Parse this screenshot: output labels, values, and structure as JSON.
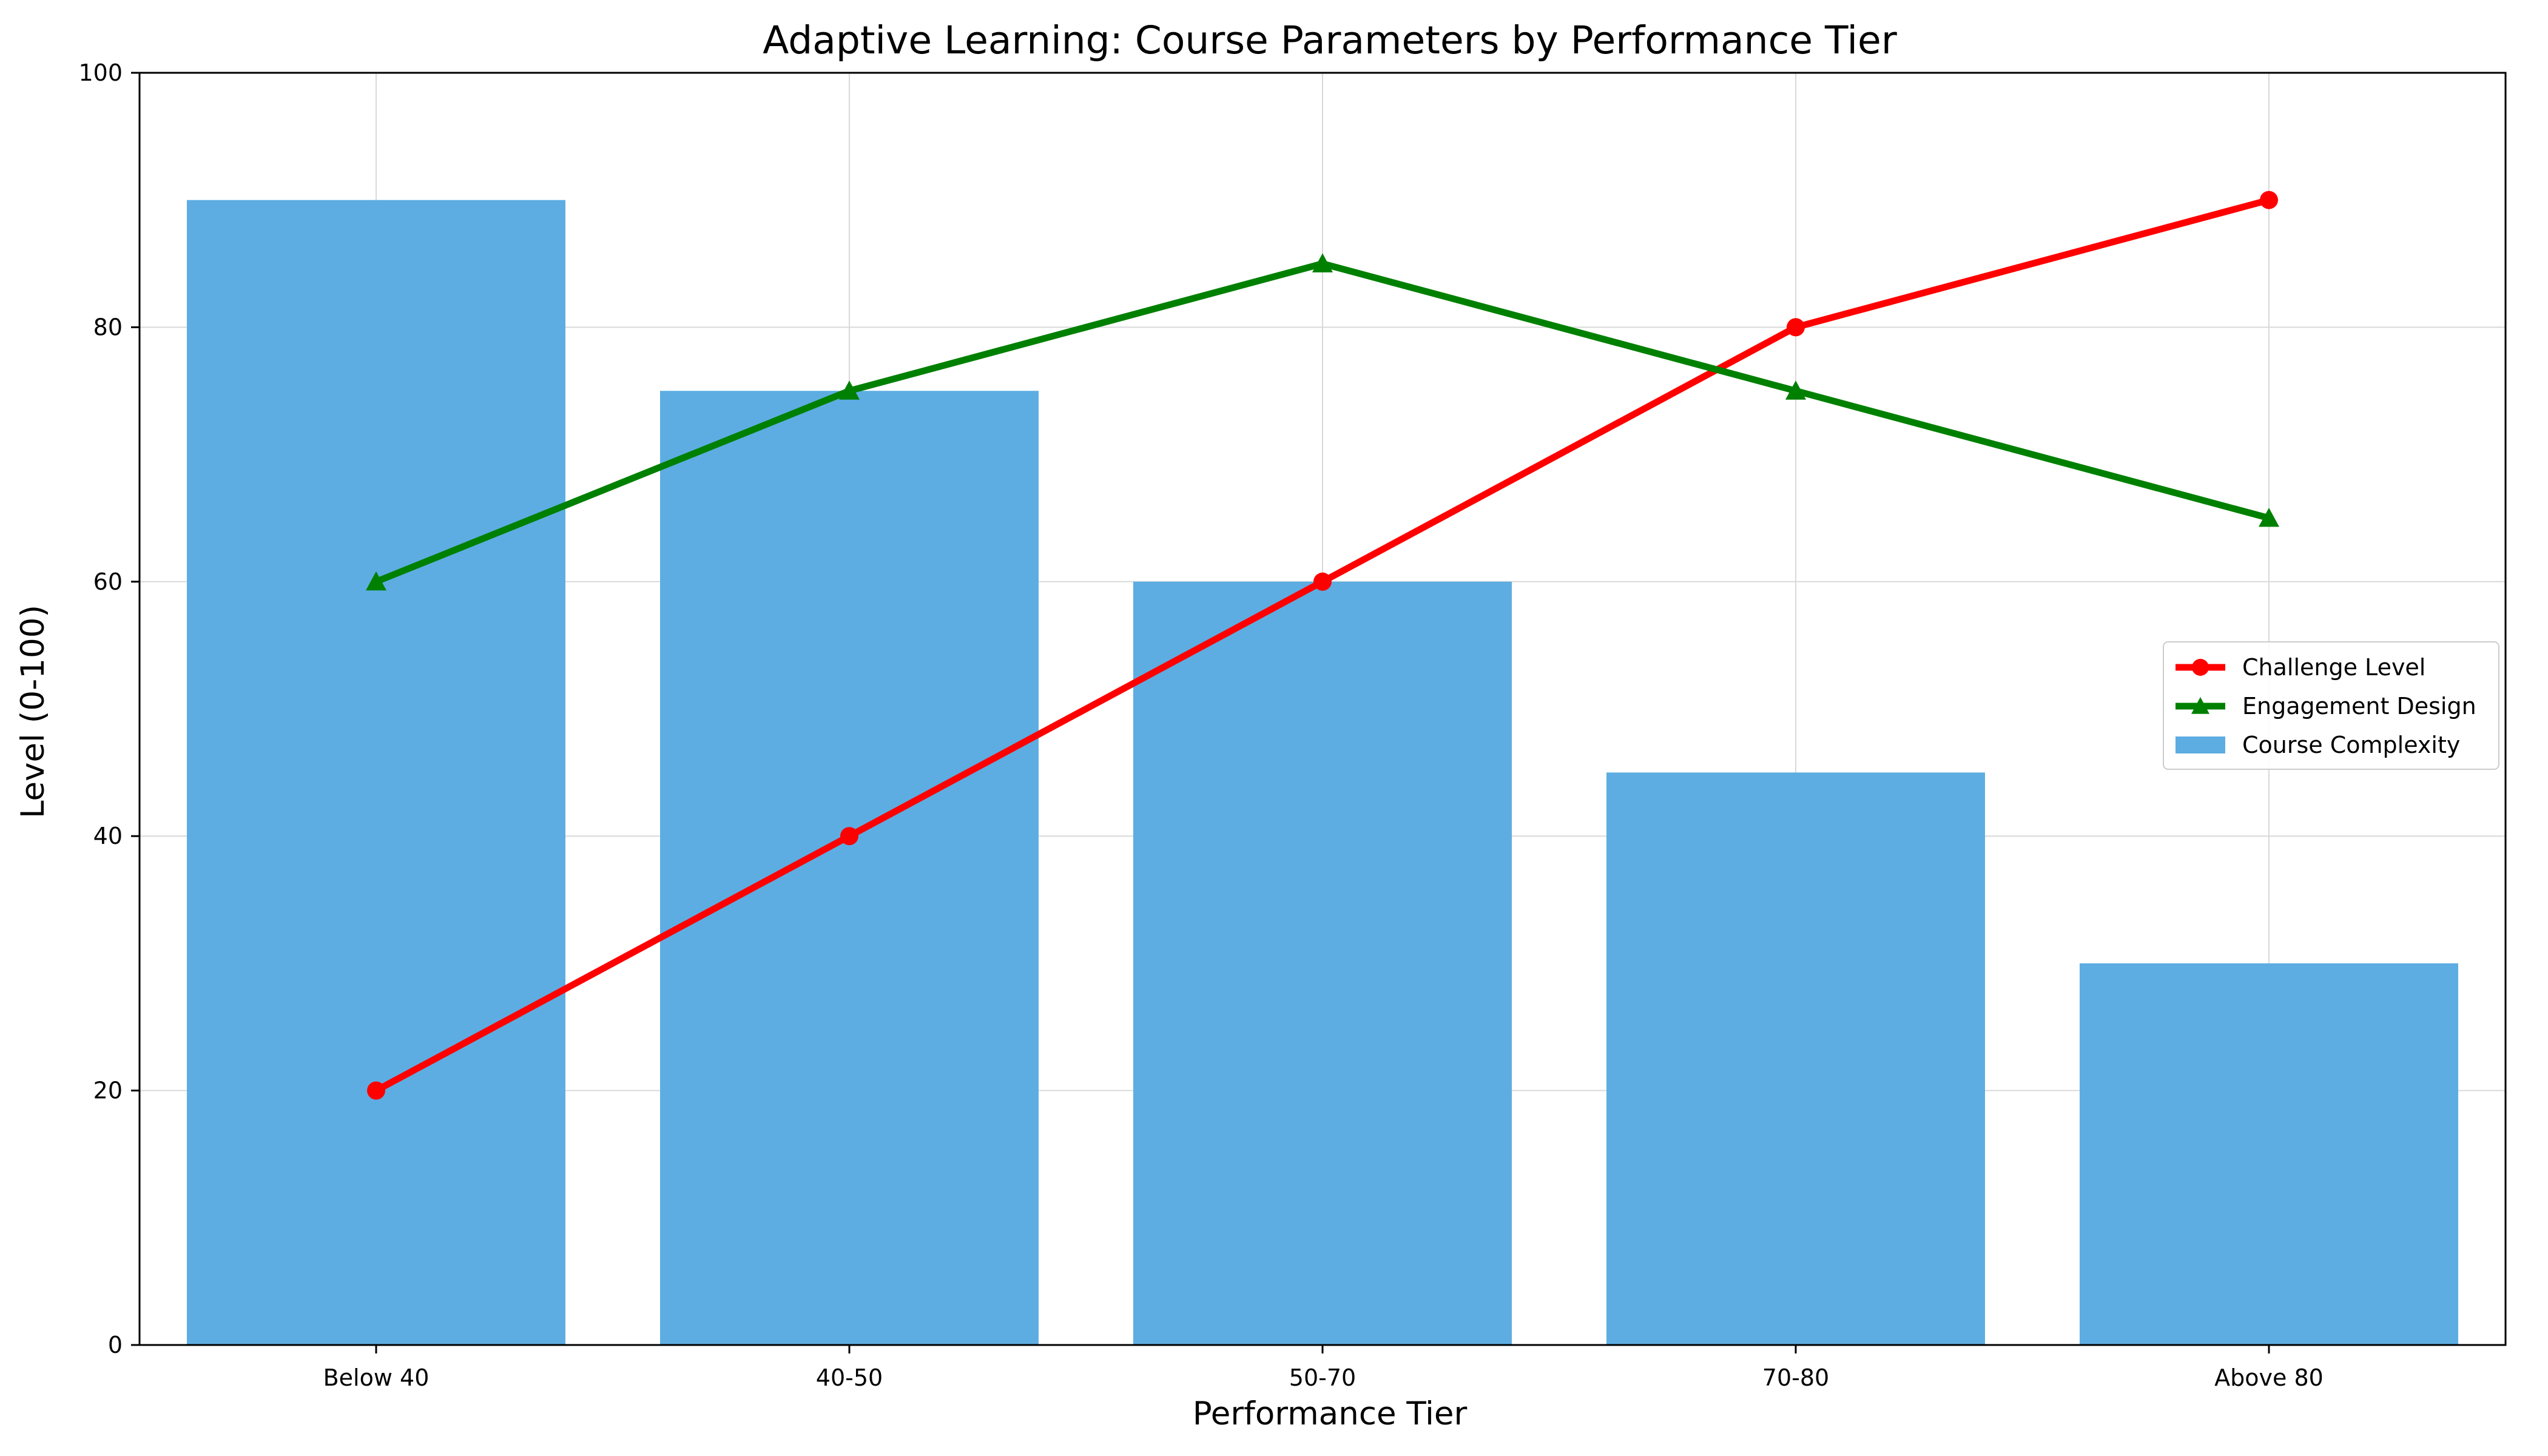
{
  "colors": {
    "bar": "#5dade2",
    "challenge": "#ff0000",
    "engagement": "#008000",
    "grid": "#d9d9d9",
    "axis": "#000000"
  },
  "chart_data": {
    "type": "bar",
    "title": "Adaptive Learning: Course Parameters by Performance Tier",
    "xlabel": "Performance Tier",
    "ylabel": "Level (0-100)",
    "ylim": [
      0,
      100
    ],
    "yticks": [
      0,
      20,
      40,
      60,
      80,
      100
    ],
    "grid": true,
    "legend_position": "center-right",
    "categories": [
      "Below 40",
      "40-50",
      "50-70",
      "70-80",
      "Above 80"
    ],
    "series": [
      {
        "name": "Challenge Level",
        "type": "line",
        "marker": "circle",
        "color": "#ff0000",
        "values": [
          20,
          40,
          60,
          80,
          90
        ]
      },
      {
        "name": "Engagement Design",
        "type": "line",
        "marker": "triangle",
        "color": "#008000",
        "values": [
          60,
          75,
          85,
          75,
          65
        ]
      },
      {
        "name": "Course Complexity",
        "type": "bar",
        "color": "#5dade2",
        "values": [
          90,
          75,
          60,
          45,
          30
        ]
      }
    ]
  }
}
